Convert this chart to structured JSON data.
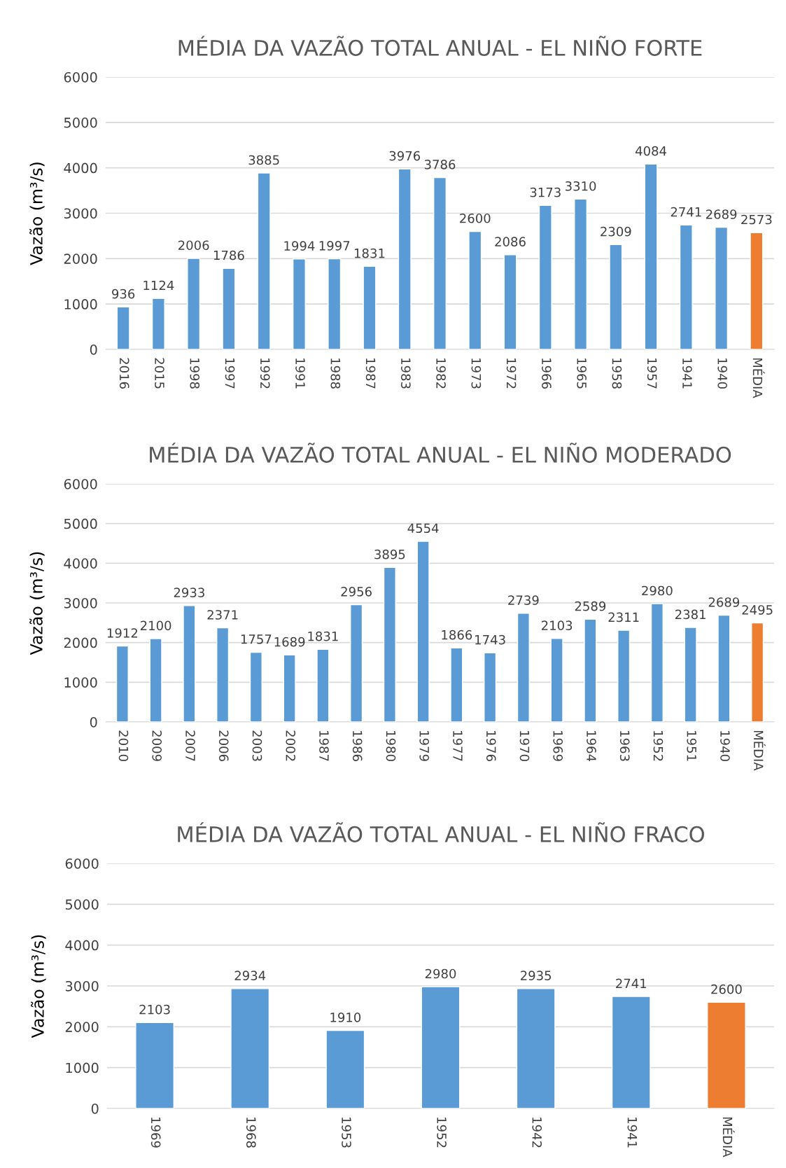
{
  "chart_data": [
    {
      "type": "bar",
      "title": "MÉDIA DA VAZÃO TOTAL ANUAL - EL NIÑO FORTE",
      "ylabel": "Vazão (m³/s)",
      "categories": [
        "2016",
        "2015",
        "1998",
        "1997",
        "1992",
        "1991",
        "1988",
        "1987",
        "1983",
        "1982",
        "1973",
        "1972",
        "1966",
        "1965",
        "1958",
        "1957",
        "1941",
        "1940",
        "MÉDIA"
      ],
      "values": [
        936,
        1124,
        2006,
        1786,
        3885,
        1994,
        1997,
        1831,
        3976,
        3786,
        2600,
        2086,
        3173,
        3310,
        2309,
        4084,
        2741,
        2689,
        2573
      ],
      "colors": [
        "#5b9bd5",
        "#5b9bd5",
        "#5b9bd5",
        "#5b9bd5",
        "#5b9bd5",
        "#5b9bd5",
        "#5b9bd5",
        "#5b9bd5",
        "#5b9bd5",
        "#5b9bd5",
        "#5b9bd5",
        "#5b9bd5",
        "#5b9bd5",
        "#5b9bd5",
        "#5b9bd5",
        "#5b9bd5",
        "#5b9bd5",
        "#5b9bd5",
        "#ed7d31"
      ],
      "ylim": [
        0,
        6000
      ],
      "yticks": [
        0,
        1000,
        2000,
        3000,
        4000,
        5000,
        6000
      ],
      "grid": "y",
      "data_labels": true
    },
    {
      "type": "bar",
      "title": "MÉDIA DA VAZÃO TOTAL ANUAL - EL NIÑO MODERADO",
      "ylabel": "Vazão (m³/s)",
      "categories": [
        "2010",
        "2009",
        "2007",
        "2006",
        "2003",
        "2002",
        "1987",
        "1986",
        "1980",
        "1979",
        "1977",
        "1976",
        "1970",
        "1969",
        "1964",
        "1963",
        "1952",
        "1951",
        "1940",
        "MÉDIA"
      ],
      "values": [
        1912,
        2100,
        2933,
        2371,
        1757,
        1689,
        1831,
        2956,
        3895,
        4554,
        1866,
        1743,
        2739,
        2103,
        2589,
        2311,
        2980,
        2381,
        2689,
        2495
      ],
      "colors": [
        "#5b9bd5",
        "#5b9bd5",
        "#5b9bd5",
        "#5b9bd5",
        "#5b9bd5",
        "#5b9bd5",
        "#5b9bd5",
        "#5b9bd5",
        "#5b9bd5",
        "#5b9bd5",
        "#5b9bd5",
        "#5b9bd5",
        "#5b9bd5",
        "#5b9bd5",
        "#5b9bd5",
        "#5b9bd5",
        "#5b9bd5",
        "#5b9bd5",
        "#5b9bd5",
        "#ed7d31"
      ],
      "ylim": [
        0,
        6000
      ],
      "yticks": [
        0,
        1000,
        2000,
        3000,
        4000,
        5000,
        6000
      ],
      "grid": "y",
      "data_labels": true
    },
    {
      "type": "bar",
      "title": "MÉDIA DA VAZÃO TOTAL ANUAL - EL NIÑO FRACO",
      "ylabel": "Vazão (m³/s)",
      "categories": [
        "1969",
        "1968",
        "1953",
        "1952",
        "1942",
        "1941",
        "MÉDIA"
      ],
      "values": [
        2103,
        2934,
        1910,
        2980,
        2935,
        2741,
        2600
      ],
      "colors": [
        "#5b9bd5",
        "#5b9bd5",
        "#5b9bd5",
        "#5b9bd5",
        "#5b9bd5",
        "#5b9bd5",
        "#ed7d31"
      ],
      "ylim": [
        0,
        6000
      ],
      "yticks": [
        0,
        1000,
        2000,
        3000,
        4000,
        5000,
        6000
      ],
      "grid": "y",
      "data_labels": true
    }
  ]
}
